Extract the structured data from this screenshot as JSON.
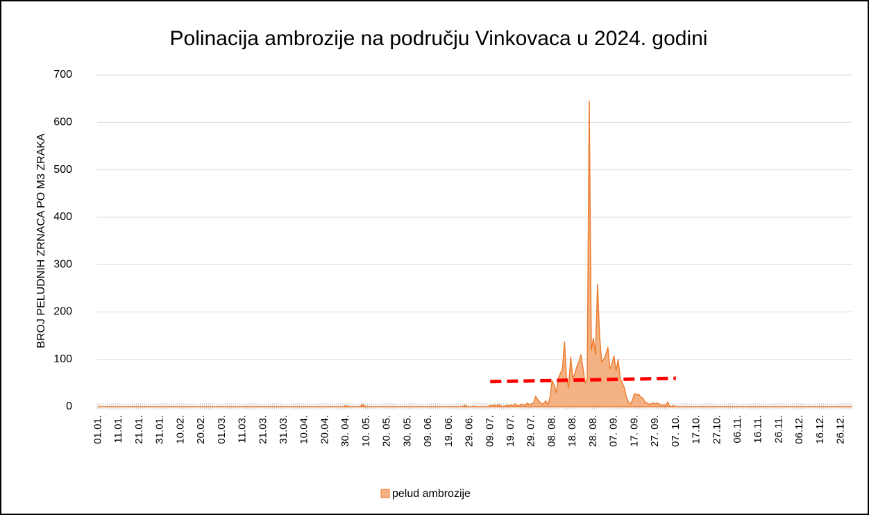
{
  "chart_data": {
    "type": "area",
    "title": "Polinacija ambrozije na području Vinkovaca u 2024. godini",
    "y_label": "BROJ PELUDNIH ZRNACA PO M3 ZRAKA",
    "ylim": [
      0,
      700
    ],
    "yticks": [
      0,
      100,
      200,
      300,
      400,
      500,
      600,
      700
    ],
    "grid": true,
    "legend": "bottom",
    "categories": [
      "01.01.",
      null,
      null,
      null,
      null,
      null,
      null,
      null,
      null,
      null,
      "11.01.",
      null,
      null,
      null,
      null,
      null,
      null,
      null,
      null,
      null,
      "21.01.",
      null,
      null,
      null,
      null,
      null,
      null,
      null,
      null,
      null,
      "31.01.",
      null,
      null,
      null,
      null,
      null,
      null,
      null,
      null,
      null,
      "10.02.",
      null,
      null,
      null,
      null,
      null,
      null,
      null,
      null,
      null,
      "20.02.",
      null,
      null,
      null,
      null,
      null,
      null,
      null,
      null,
      null,
      "01.03.",
      null,
      null,
      null,
      null,
      null,
      null,
      null,
      null,
      null,
      "11.03.",
      null,
      null,
      null,
      null,
      null,
      null,
      null,
      null,
      null,
      "21.03.",
      null,
      null,
      null,
      null,
      null,
      null,
      null,
      null,
      null,
      "31.03.",
      null,
      null,
      null,
      null,
      null,
      null,
      null,
      null,
      null,
      "10.04.",
      null,
      null,
      null,
      null,
      null,
      null,
      null,
      null,
      null,
      "20.04.",
      null,
      null,
      null,
      null,
      null,
      null,
      null,
      null,
      null,
      "30. 04.",
      null,
      null,
      null,
      null,
      null,
      null,
      null,
      null,
      null,
      "10. 05.",
      null,
      null,
      null,
      null,
      null,
      null,
      null,
      null,
      null,
      "20. 05.",
      null,
      null,
      null,
      null,
      null,
      null,
      null,
      null,
      null,
      "30. 05.",
      null,
      null,
      null,
      null,
      null,
      null,
      null,
      null,
      null,
      "09. 06.",
      null,
      null,
      null,
      null,
      null,
      null,
      null,
      null,
      null,
      "19. 06.",
      null,
      null,
      null,
      null,
      null,
      null,
      null,
      null,
      null,
      "29. 06.",
      null,
      null,
      null,
      null,
      null,
      null,
      null,
      null,
      null,
      "09. 07.",
      null,
      null,
      null,
      null,
      null,
      null,
      null,
      null,
      null,
      "19. 07.",
      null,
      null,
      null,
      null,
      null,
      null,
      null,
      null,
      null,
      "29. 07.",
      null,
      null,
      null,
      null,
      null,
      null,
      null,
      null,
      null,
      "08. 08.",
      null,
      null,
      null,
      null,
      null,
      null,
      null,
      null,
      null,
      "18. 08.",
      null,
      null,
      null,
      null,
      null,
      null,
      null,
      null,
      null,
      "28. 08.",
      null,
      null,
      null,
      null,
      null,
      null,
      null,
      null,
      null,
      "07. 09.",
      null,
      null,
      null,
      null,
      null,
      null,
      null,
      null,
      null,
      "17. 09.",
      null,
      null,
      null,
      null,
      null,
      null,
      null,
      null,
      null,
      "27. 09.",
      null,
      null,
      null,
      null,
      null,
      null,
      null,
      null,
      null,
      "07. 10.",
      null,
      null,
      null,
      null,
      null,
      null,
      null,
      null,
      null,
      "17.10.",
      null,
      null,
      null,
      null,
      null,
      null,
      null,
      null,
      null,
      "27.10.",
      null,
      null,
      null,
      null,
      null,
      null,
      null,
      null,
      null,
      "06.11.",
      null,
      null,
      null,
      null,
      null,
      null,
      null,
      null,
      null,
      "16.11.",
      null,
      null,
      null,
      null,
      null,
      null,
      null,
      null,
      null,
      "26.11.",
      null,
      null,
      null,
      null,
      null,
      null,
      null,
      null,
      null,
      "06.12.",
      null,
      null,
      null,
      null,
      null,
      null,
      null,
      null,
      null,
      "16.12.",
      null,
      null,
      null,
      null,
      null,
      null,
      null,
      null,
      null,
      "26.12.",
      null,
      null,
      null,
      null,
      null
    ],
    "series": [
      {
        "name": "pelud ambrozije",
        "color": "#ed7d31",
        "fill": "#f4b183",
        "values": [
          0,
          0,
          0,
          0,
          0,
          0,
          0,
          0,
          0,
          0,
          0,
          0,
          0,
          0,
          0,
          0,
          0,
          0,
          0,
          0,
          0,
          0,
          0,
          0,
          0,
          0,
          0,
          0,
          0,
          0,
          0,
          0,
          0,
          0,
          0,
          0,
          0,
          0,
          0,
          0,
          0,
          0,
          0,
          0,
          0,
          0,
          0,
          0,
          0,
          0,
          0,
          0,
          0,
          0,
          0,
          0,
          0,
          0,
          0,
          0,
          0,
          0,
          0,
          0,
          0,
          0,
          0,
          0,
          0,
          0,
          0,
          0,
          0,
          0,
          0,
          0,
          0,
          0,
          0,
          0,
          0,
          0,
          0,
          0,
          0,
          0,
          0,
          0,
          0,
          0,
          0,
          0,
          0,
          0,
          0,
          0,
          0,
          0,
          0,
          0,
          0,
          0,
          0,
          0,
          0,
          0,
          0,
          0,
          0,
          0,
          0,
          0,
          0,
          0,
          0,
          0,
          0,
          0,
          0,
          0,
          2,
          1,
          0,
          0,
          0,
          0,
          0,
          0,
          5,
          2,
          0,
          0,
          0,
          0,
          0,
          0,
          0,
          0,
          0,
          0,
          0,
          0,
          0,
          0,
          0,
          0,
          0,
          0,
          0,
          0,
          0,
          0,
          0,
          0,
          0,
          0,
          0,
          0,
          0,
          0,
          0,
          0,
          0,
          0,
          0,
          0,
          0,
          0,
          0,
          0,
          0,
          0,
          0,
          0,
          0,
          0,
          0,
          1,
          3,
          0,
          0,
          0,
          1,
          0,
          0,
          0,
          0,
          0,
          0,
          0,
          3,
          2,
          4,
          1,
          5,
          2,
          0,
          1,
          3,
          2,
          4,
          2,
          6,
          3,
          2,
          5,
          4,
          3,
          8,
          4,
          6,
          8,
          22,
          15,
          10,
          5,
          8,
          12,
          4,
          20,
          55,
          45,
          30,
          60,
          70,
          80,
          137,
          60,
          40,
          105,
          60,
          70,
          85,
          95,
          110,
          80,
          50,
          60,
          645,
          120,
          145,
          110,
          258,
          150,
          95,
          100,
          110,
          125,
          80,
          90,
          107,
          75,
          100,
          60,
          50,
          40,
          20,
          10,
          5,
          15,
          28,
          25,
          26,
          20,
          18,
          10,
          8,
          5,
          6,
          8,
          6,
          8,
          5,
          3,
          4,
          2,
          10,
          0,
          1,
          2,
          0,
          0,
          0,
          0,
          0,
          0,
          0,
          0,
          0,
          0,
          0,
          0,
          0,
          0,
          0,
          0,
          0,
          0,
          0,
          0,
          0,
          0,
          0,
          0,
          0,
          0,
          0,
          0,
          0,
          0,
          0,
          0,
          0,
          0,
          0,
          0,
          0,
          0,
          0,
          0,
          0,
          0,
          0,
          0,
          0,
          0,
          0,
          0,
          0,
          0,
          0,
          0,
          0,
          0,
          0,
          0,
          0,
          0,
          0,
          0,
          0,
          0,
          0,
          0,
          0,
          0,
          0,
          0,
          0,
          0,
          0,
          0,
          0,
          0,
          0,
          0,
          0,
          0,
          0,
          0,
          0,
          0,
          0,
          0,
          0,
          0
        ]
      }
    ],
    "trendline": {
      "from": "09. 07.",
      "to": "07. 10.",
      "values": [
        53,
        60
      ],
      "color": "#ff0000"
    }
  }
}
